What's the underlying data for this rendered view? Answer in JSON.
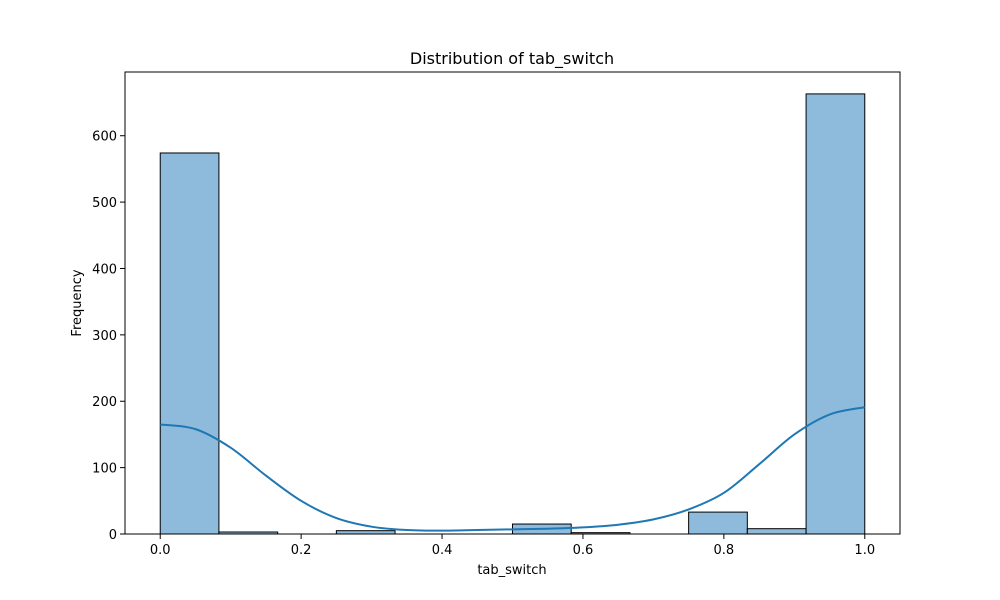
{
  "chart_data": {
    "type": "bar",
    "title": "Distribution of tab_switch",
    "xlabel": "tab_switch",
    "ylabel": "Frequency",
    "xlim": [
      -0.05,
      1.05
    ],
    "ylim": [
      0,
      696
    ],
    "xticks": [
      0.0,
      0.2,
      0.4,
      0.6,
      0.8,
      1.0
    ],
    "xtick_labels": [
      "0.0",
      "0.2",
      "0.4",
      "0.6",
      "0.8",
      "1.0"
    ],
    "yticks": [
      0,
      100,
      200,
      300,
      400,
      500,
      600
    ],
    "ytick_labels": [
      "0",
      "100",
      "200",
      "300",
      "400",
      "500",
      "600"
    ],
    "bins": [
      {
        "x0": 0.0,
        "x1": 0.0833,
        "count": 574
      },
      {
        "x0": 0.0833,
        "x1": 0.1667,
        "count": 3
      },
      {
        "x0": 0.1667,
        "x1": 0.25,
        "count": 0
      },
      {
        "x0": 0.25,
        "x1": 0.3333,
        "count": 5
      },
      {
        "x0": 0.3333,
        "x1": 0.4167,
        "count": 0
      },
      {
        "x0": 0.4167,
        "x1": 0.5,
        "count": 0
      },
      {
        "x0": 0.5,
        "x1": 0.5833,
        "count": 15
      },
      {
        "x0": 0.5833,
        "x1": 0.6667,
        "count": 2
      },
      {
        "x0": 0.6667,
        "x1": 0.75,
        "count": 0
      },
      {
        "x0": 0.75,
        "x1": 0.8333,
        "count": 33
      },
      {
        "x0": 0.8333,
        "x1": 0.9167,
        "count": 8
      },
      {
        "x0": 0.9167,
        "x1": 1.0,
        "count": 663
      }
    ],
    "kde": {
      "x": [
        0.0,
        0.05,
        0.1,
        0.15,
        0.2,
        0.25,
        0.3,
        0.35,
        0.4,
        0.45,
        0.5,
        0.55,
        0.6,
        0.65,
        0.7,
        0.75,
        0.8,
        0.85,
        0.9,
        0.95,
        1.0
      ],
      "y": [
        165,
        158,
        130,
        88,
        50,
        24,
        11,
        6,
        5,
        6,
        7,
        8,
        10,
        14,
        22,
        37,
        62,
        105,
        150,
        180,
        191
      ]
    },
    "colors": {
      "bar_fill": "#8ebbdb",
      "bar_edge": "#000000",
      "kde_line": "#1f77b4"
    }
  }
}
